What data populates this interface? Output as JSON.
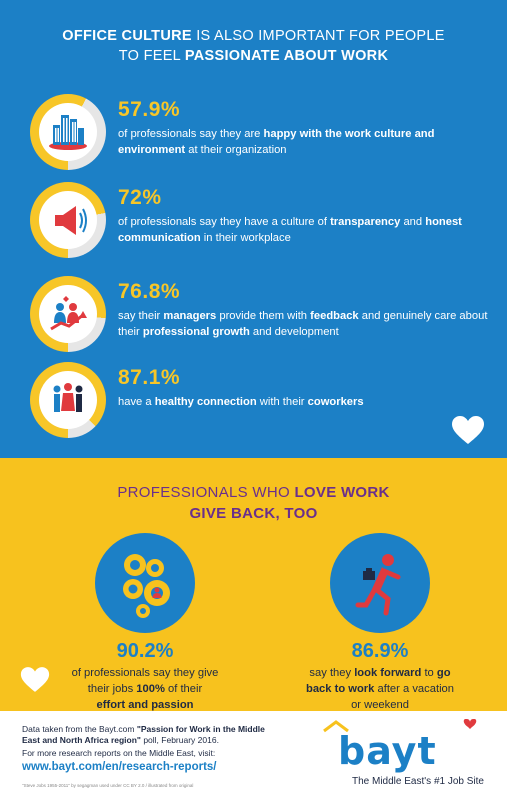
{
  "header": {
    "line1_bold": "OFFICE CULTURE",
    "line1_rest": " IS ALSO IMPORTANT FOR  PEOPLE",
    "line2_rest": "TO FEEL ",
    "line2_bold": "PASSIONATE ABOUT WORK"
  },
  "stats": [
    {
      "percent": "57.9%",
      "fill": 0.579,
      "icon": "city-buildings-icon",
      "p1": "of professionals say they are ",
      "b1": "happy with the work culture and environment",
      "p2": " at their organization",
      "b2": "",
      "p3": "",
      "b3": "",
      "p4": ""
    },
    {
      "percent": "72%",
      "fill": 0.72,
      "icon": "megaphone-icon",
      "p1": "of professionals say they have a culture of ",
      "b1": "transparency",
      "p2": " and ",
      "b2": "honest communication",
      "p3": " in their workplace",
      "b3": "",
      "p4": ""
    },
    {
      "percent": "76.8%",
      "fill": 0.768,
      "icon": "growth-people-icon",
      "p1": "say their ",
      "b1": "managers",
      "p2": " provide them with ",
      "b2": "feedback",
      "p3": " and genuinely care about their ",
      "b3": "professional growth",
      "p4": " and development"
    },
    {
      "percent": "87.1%",
      "fill": 0.871,
      "icon": "coworkers-icon",
      "p1": "have a ",
      "b1": "healthy connection",
      "p2": " with their ",
      "b2": "coworkers",
      "p3": "",
      "b3": "",
      "p4": ""
    }
  ],
  "section2": {
    "line1_light": "PROFESSIONALS WHO ",
    "line1_bold": "LOVE WORK",
    "line2_bold": "GIVE BACK, TOO"
  },
  "left_stat": {
    "percent": "90.2%",
    "icon": "gears-person-icon",
    "line1": "of professionals say they give",
    "line2_a": "their jobs ",
    "line2_b": "100%",
    "line2_c": " of their",
    "line3_b": "effort and passion"
  },
  "right_stat": {
    "percent": "86.9%",
    "icon": "running-to-work-icon",
    "line1_a": "say they ",
    "line1_b": "look forward",
    "line1_c": " to ",
    "line1_d": "go",
    "line2_b": "back to work",
    "line2_c": " after a vacation",
    "line3": "or weekend"
  },
  "footer": {
    "source_pre": "Data taken from the Bayt.com ",
    "source_bold": "\"Passion for Work in the Middle East and North Africa region\"",
    "source_post": " poll, February 2016.",
    "more": "For more research reports on the Middle East, visit:",
    "url": "www.bayt.com/en/research-reports/",
    "credit": "\"Steve Jobs 1955-2011\" by segagman used under CC BY 2.0 / illustrated from original",
    "logo": "bayt",
    "tagline": "The Middle East's #1 Job Site"
  },
  "colors": {
    "blue": "#1c80c6",
    "yellow": "#f7c21e",
    "purple": "#6a2f8c",
    "red": "#e03a3e",
    "ring_track": "#e6e6e6",
    "ring_fill": "#f7c628"
  }
}
